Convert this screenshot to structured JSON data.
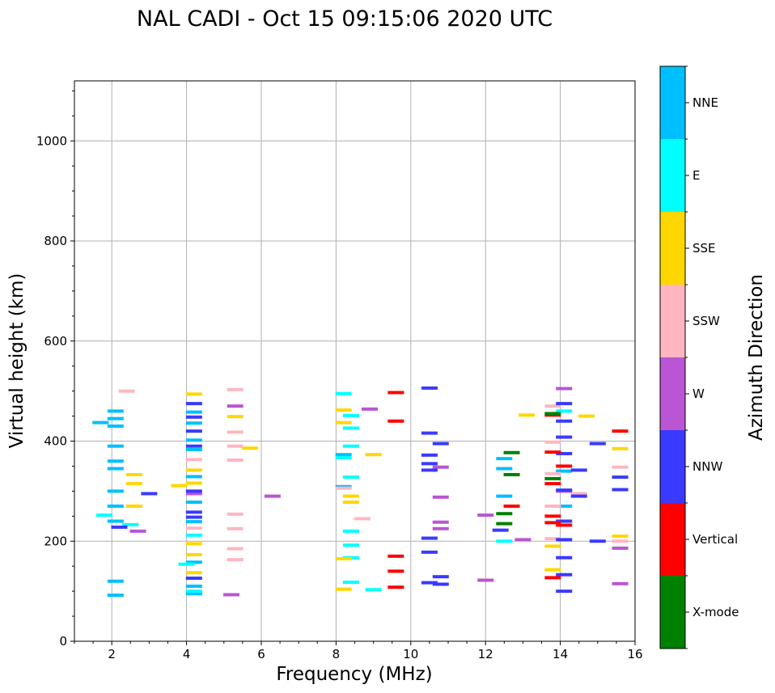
{
  "chart_data": {
    "type": "scatter",
    "title": "NAL CADI - Oct 15 09:15:06 2020 UTC",
    "xlabel": "Frequency (MHz)",
    "ylabel": "Virtual height (km)",
    "xlim": [
      1,
      16
    ],
    "ylim": [
      0,
      1120
    ],
    "xticks": [
      2,
      4,
      6,
      8,
      10,
      12,
      14,
      16
    ],
    "xtick_labels": [
      "2",
      "4",
      "6",
      "8",
      "10",
      "12",
      "14",
      "16"
    ],
    "yticks": [
      0,
      200,
      400,
      600,
      800,
      1000
    ],
    "ytick_labels": [
      "0",
      "200",
      "400",
      "600",
      "800",
      "1000"
    ],
    "grid": true,
    "colorbar": {
      "title": "Azimuth Direction",
      "categories": [
        "X-mode",
        "Vertical",
        "NNW",
        "W",
        "SSW",
        "SSE",
        "E",
        "NNE"
      ],
      "colors": [
        "#008000",
        "#ff0000",
        "#3a3aff",
        "#ba55d3",
        "#ffb6c1",
        "#ffd700",
        "#00ffff",
        "#00bfff"
      ]
    },
    "series": [
      {
        "name": "NNE",
        "points": [
          [
            1.7,
            437
          ],
          [
            2.1,
            460
          ],
          [
            2.1,
            445
          ],
          [
            2.1,
            430
          ],
          [
            2.1,
            390
          ],
          [
            2.1,
            360
          ],
          [
            2.1,
            345
          ],
          [
            2.1,
            300
          ],
          [
            2.1,
            270
          ],
          [
            2.1,
            240
          ],
          [
            2.1,
            120
          ],
          [
            2.1,
            92
          ],
          [
            4.2,
            458
          ],
          [
            4.2,
            436
          ],
          [
            4.2,
            402
          ],
          [
            4.2,
            383
          ],
          [
            4.2,
            329
          ],
          [
            4.2,
            278
          ],
          [
            4.2,
            239
          ],
          [
            4.2,
            158
          ],
          [
            4.2,
            110
          ],
          [
            4.2,
            95
          ],
          [
            8.2,
            373
          ],
          [
            8.2,
            309
          ],
          [
            12.5,
            365
          ],
          [
            12.5,
            345
          ],
          [
            12.5,
            290
          ],
          [
            14.1,
            340
          ],
          [
            14.1,
            270
          ]
        ]
      },
      {
        "name": "E",
        "points": [
          [
            1.8,
            252
          ],
          [
            2.5,
            233
          ],
          [
            4.0,
            154
          ],
          [
            4.2,
            212
          ],
          [
            4.2,
            100
          ],
          [
            8.2,
            495
          ],
          [
            8.2,
            367
          ],
          [
            8.4,
            451
          ],
          [
            8.4,
            426
          ],
          [
            8.4,
            390
          ],
          [
            8.4,
            328
          ],
          [
            8.4,
            220
          ],
          [
            8.4,
            192
          ],
          [
            8.4,
            167
          ],
          [
            8.4,
            118
          ],
          [
            9.0,
            103
          ],
          [
            12.5,
            200
          ],
          [
            14.1,
            460
          ]
        ]
      },
      {
        "name": "SSE",
        "points": [
          [
            2.6,
            333
          ],
          [
            2.6,
            315
          ],
          [
            2.6,
            270
          ],
          [
            3.8,
            311
          ],
          [
            4.2,
            494
          ],
          [
            4.2,
            342
          ],
          [
            4.2,
            316
          ],
          [
            4.2,
            195
          ],
          [
            4.2,
            173
          ],
          [
            4.2,
            137
          ],
          [
            5.3,
            449
          ],
          [
            5.7,
            386
          ],
          [
            8.2,
            462
          ],
          [
            8.2,
            437
          ],
          [
            8.2,
            165
          ],
          [
            8.2,
            104
          ],
          [
            8.4,
            290
          ],
          [
            8.4,
            278
          ],
          [
            9.0,
            373
          ],
          [
            13.1,
            452
          ],
          [
            13.8,
            190
          ],
          [
            13.8,
            143
          ],
          [
            14.7,
            450
          ],
          [
            15.6,
            385
          ],
          [
            15.6,
            210
          ]
        ]
      },
      {
        "name": "SSW",
        "points": [
          [
            2.4,
            500
          ],
          [
            4.2,
            363
          ],
          [
            4.2,
            226
          ],
          [
            5.3,
            503
          ],
          [
            5.3,
            418
          ],
          [
            5.3,
            390
          ],
          [
            5.3,
            362
          ],
          [
            5.3,
            254
          ],
          [
            5.3,
            225
          ],
          [
            5.3,
            185
          ],
          [
            5.3,
            163
          ],
          [
            8.2,
            306
          ],
          [
            8.7,
            245
          ],
          [
            13.8,
            470
          ],
          [
            13.8,
            398
          ],
          [
            13.8,
            335
          ],
          [
            13.8,
            270
          ],
          [
            13.8,
            205
          ],
          [
            14.5,
            295
          ],
          [
            15.6,
            348
          ],
          [
            15.6,
            200
          ]
        ]
      },
      {
        "name": "W",
        "points": [
          [
            2.7,
            220
          ],
          [
            4.2,
            295
          ],
          [
            5.3,
            470
          ],
          [
            5.2,
            93
          ],
          [
            6.3,
            290
          ],
          [
            8.9,
            464
          ],
          [
            10.8,
            348
          ],
          [
            10.8,
            288
          ],
          [
            10.8,
            238
          ],
          [
            10.8,
            225
          ],
          [
            12.0,
            252
          ],
          [
            12.0,
            122
          ],
          [
            13.0,
            203
          ],
          [
            14.1,
            505
          ],
          [
            14.1,
            300
          ],
          [
            15.6,
            186
          ],
          [
            15.6,
            115
          ]
        ]
      },
      {
        "name": "NNW",
        "points": [
          [
            2.2,
            228
          ],
          [
            3.0,
            295
          ],
          [
            4.2,
            475
          ],
          [
            4.2,
            448
          ],
          [
            4.2,
            420
          ],
          [
            4.2,
            390
          ],
          [
            4.2,
            300
          ],
          [
            4.2,
            258
          ],
          [
            4.2,
            248
          ],
          [
            4.2,
            126
          ],
          [
            10.5,
            506
          ],
          [
            10.5,
            416
          ],
          [
            10.5,
            372
          ],
          [
            10.5,
            355
          ],
          [
            10.5,
            342
          ],
          [
            10.5,
            206
          ],
          [
            10.5,
            178
          ],
          [
            10.5,
            117
          ],
          [
            10.8,
            395
          ],
          [
            10.8,
            129
          ],
          [
            10.8,
            114
          ],
          [
            12.4,
            222
          ],
          [
            14.1,
            475
          ],
          [
            14.1,
            440
          ],
          [
            14.1,
            408
          ],
          [
            14.1,
            375
          ],
          [
            14.1,
            302
          ],
          [
            14.1,
            240
          ],
          [
            14.1,
            203
          ],
          [
            14.1,
            167
          ],
          [
            14.1,
            133
          ],
          [
            14.1,
            100
          ],
          [
            14.5,
            342
          ],
          [
            14.5,
            290
          ],
          [
            15.0,
            200
          ],
          [
            15.0,
            395
          ],
          [
            15.6,
            328
          ],
          [
            15.6,
            303
          ]
        ]
      },
      {
        "name": "Vertical",
        "points": [
          [
            9.6,
            497
          ],
          [
            9.6,
            440
          ],
          [
            9.6,
            170
          ],
          [
            9.6,
            140
          ],
          [
            9.6,
            108
          ],
          [
            12.7,
            270
          ],
          [
            13.8,
            452
          ],
          [
            13.8,
            378
          ],
          [
            13.8,
            315
          ],
          [
            13.8,
            250
          ],
          [
            13.8,
            237
          ],
          [
            13.8,
            127
          ],
          [
            14.1,
            350
          ],
          [
            14.1,
            232
          ],
          [
            15.6,
            420
          ]
        ]
      },
      {
        "name": "X-mode",
        "points": [
          [
            12.7,
            377
          ],
          [
            12.7,
            333
          ],
          [
            12.5,
            255
          ],
          [
            12.5,
            235
          ],
          [
            13.8,
            455
          ],
          [
            13.8,
            325
          ]
        ]
      }
    ]
  }
}
